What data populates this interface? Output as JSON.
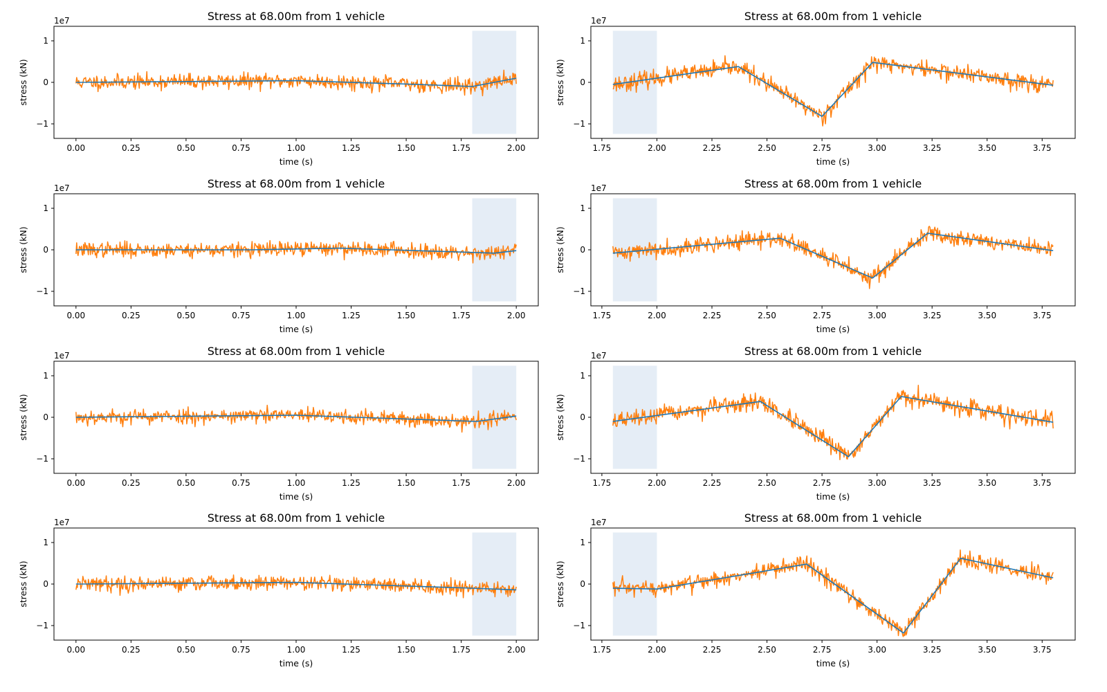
{
  "colors": {
    "noisy": "#ff7f0e",
    "clean": "#1f77b4",
    "window": "#dce7f3"
  },
  "chart_data": [
    {
      "type": "line",
      "title": "Stress at 68.00m from 1 vehicle",
      "xlabel": "time (s)",
      "ylabel": "stress (kN)",
      "y_exponent_label": "1e7",
      "xlim": [
        -0.1,
        2.1
      ],
      "ylim": [
        -1.35,
        1.35
      ],
      "xticks": [
        0.0,
        0.25,
        0.5,
        0.75,
        1.0,
        1.25,
        1.5,
        1.75,
        2.0
      ],
      "xtick_labels": [
        "0.00",
        "0.25",
        "0.50",
        "0.75",
        "1.00",
        "1.25",
        "1.50",
        "1.75",
        "2.00"
      ],
      "yticks": [
        -1,
        0,
        1
      ],
      "ytick_labels": [
        "−1",
        "0",
        "1"
      ],
      "window": [
        1.8,
        2.0
      ],
      "noise": 0.09,
      "seed": 11,
      "series": [
        {
          "values_x": [
            0.0,
            1.0,
            1.5,
            1.8,
            2.0
          ],
          "values_y": [
            0.0,
            0.04,
            -0.04,
            -0.1,
            0.1
          ]
        }
      ]
    },
    {
      "type": "line",
      "title": "Stress at 68.00m from 1 vehicle",
      "xlabel": "time (s)",
      "ylabel": "stress (kN)",
      "y_exponent_label": "1e7",
      "xlim": [
        1.7,
        3.9
      ],
      "ylim": [
        -1.35,
        1.35
      ],
      "xticks": [
        1.75,
        2.0,
        2.25,
        2.5,
        2.75,
        3.0,
        3.25,
        3.5,
        3.75
      ],
      "xtick_labels": [
        "1.75",
        "2.00",
        "2.25",
        "2.50",
        "2.75",
        "3.00",
        "3.25",
        "3.50",
        "3.75"
      ],
      "yticks": [
        -1,
        0,
        1
      ],
      "ytick_labels": [
        "−1",
        "0",
        "1"
      ],
      "window": [
        1.8,
        2.0
      ],
      "noise": 0.1,
      "seed": 23,
      "series": [
        {
          "values_x": [
            1.8,
            2.37,
            2.75,
            2.98,
            3.8
          ],
          "values_y": [
            -0.05,
            0.38,
            -0.82,
            0.48,
            -0.07
          ]
        }
      ]
    },
    {
      "type": "line",
      "title": "Stress at 68.00m from 1 vehicle",
      "xlabel": "time (s)",
      "ylabel": "stress (kN)",
      "y_exponent_label": "1e7",
      "xlim": [
        -0.1,
        2.1
      ],
      "ylim": [
        -1.35,
        1.35
      ],
      "xticks": [
        0.0,
        0.25,
        0.5,
        0.75,
        1.0,
        1.25,
        1.5,
        1.75,
        2.0
      ],
      "xtick_labels": [
        "0.00",
        "0.25",
        "0.50",
        "0.75",
        "1.00",
        "1.25",
        "1.50",
        "1.75",
        "2.00"
      ],
      "yticks": [
        -1,
        0,
        1
      ],
      "ytick_labels": [
        "−1",
        "0",
        "1"
      ],
      "window": [
        1.8,
        2.0
      ],
      "noise": 0.09,
      "seed": 37,
      "series": [
        {
          "values_x": [
            0.0,
            0.8,
            1.2,
            1.9,
            2.0
          ],
          "values_y": [
            0.0,
            0.0,
            0.04,
            -0.08,
            -0.02
          ]
        }
      ]
    },
    {
      "type": "line",
      "title": "Stress at 68.00m from 1 vehicle",
      "xlabel": "time (s)",
      "ylabel": "stress (kN)",
      "y_exponent_label": "1e7",
      "xlim": [
        1.7,
        3.9
      ],
      "ylim": [
        -1.35,
        1.35
      ],
      "xticks": [
        1.75,
        2.0,
        2.25,
        2.5,
        2.75,
        3.0,
        3.25,
        3.5,
        3.75
      ],
      "xtick_labels": [
        "1.75",
        "2.00",
        "2.25",
        "2.50",
        "2.75",
        "3.00",
        "3.25",
        "3.50",
        "3.75"
      ],
      "yticks": [
        -1,
        0,
        1
      ],
      "ytick_labels": [
        "−1",
        "0",
        "1"
      ],
      "window": [
        1.8,
        2.0
      ],
      "noise": 0.1,
      "seed": 41,
      "series": [
        {
          "values_x": [
            1.8,
            2.56,
            2.98,
            3.23,
            3.8
          ],
          "values_y": [
            -0.08,
            0.28,
            -0.68,
            0.4,
            -0.02
          ]
        }
      ]
    },
    {
      "type": "line",
      "title": "Stress at 68.00m from 1 vehicle",
      "xlabel": "time (s)",
      "ylabel": "stress (kN)",
      "y_exponent_label": "1e7",
      "xlim": [
        -0.1,
        2.1
      ],
      "ylim": [
        -1.35,
        1.35
      ],
      "xticks": [
        0.0,
        0.25,
        0.5,
        0.75,
        1.0,
        1.25,
        1.5,
        1.75,
        2.0
      ],
      "xtick_labels": [
        "0.00",
        "0.25",
        "0.50",
        "0.75",
        "1.00",
        "1.25",
        "1.50",
        "1.75",
        "2.00"
      ],
      "yticks": [
        -1,
        0,
        1
      ],
      "ytick_labels": [
        "−1",
        "0",
        "1"
      ],
      "window": [
        1.8,
        2.0
      ],
      "noise": 0.09,
      "seed": 53,
      "series": [
        {
          "values_x": [
            0.0,
            1.0,
            1.82,
            2.0
          ],
          "values_y": [
            0.0,
            0.05,
            -0.1,
            0.03
          ]
        }
      ]
    },
    {
      "type": "line",
      "title": "Stress at 68.00m from 1 vehicle",
      "xlabel": "time (s)",
      "ylabel": "stress (kN)",
      "y_exponent_label": "1e7",
      "xlim": [
        1.7,
        3.9
      ],
      "ylim": [
        -1.35,
        1.35
      ],
      "xticks": [
        1.75,
        2.0,
        2.25,
        2.5,
        2.75,
        3.0,
        3.25,
        3.5,
        3.75
      ],
      "xtick_labels": [
        "1.75",
        "2.00",
        "2.25",
        "2.50",
        "2.75",
        "3.00",
        "3.25",
        "3.50",
        "3.75"
      ],
      "yticks": [
        -1,
        0,
        1
      ],
      "ytick_labels": [
        "−1",
        "0",
        "1"
      ],
      "window": [
        1.8,
        2.0
      ],
      "noise": 0.1,
      "seed": 67,
      "series": [
        {
          "values_x": [
            1.8,
            2.47,
            2.87,
            3.11,
            3.8
          ],
          "values_y": [
            -0.1,
            0.38,
            -0.95,
            0.5,
            -0.12
          ]
        }
      ]
    },
    {
      "type": "line",
      "title": "Stress at 68.00m from 1 vehicle",
      "xlabel": "time (s)",
      "ylabel": "stress (kN)",
      "y_exponent_label": "1e7",
      "xlim": [
        -0.1,
        2.1
      ],
      "ylim": [
        -1.35,
        1.35
      ],
      "xticks": [
        0.0,
        0.25,
        0.5,
        0.75,
        1.0,
        1.25,
        1.5,
        1.75,
        2.0
      ],
      "xtick_labels": [
        "0.00",
        "0.25",
        "0.50",
        "0.75",
        "1.00",
        "1.25",
        "1.50",
        "1.75",
        "2.00"
      ],
      "yticks": [
        -1,
        0,
        1
      ],
      "ytick_labels": [
        "−1",
        "0",
        "1"
      ],
      "window": [
        1.8,
        2.0
      ],
      "noise": 0.09,
      "seed": 79,
      "series": [
        {
          "values_x": [
            0.0,
            1.0,
            1.8,
            2.0
          ],
          "values_y": [
            0.0,
            0.04,
            -0.1,
            -0.14
          ]
        }
      ]
    },
    {
      "type": "line",
      "title": "Stress at 68.00m from 1 vehicle",
      "xlabel": "time (s)",
      "ylabel": "stress (kN)",
      "y_exponent_label": "1e7",
      "xlim": [
        1.7,
        3.9
      ],
      "ylim": [
        -1.35,
        1.35
      ],
      "xticks": [
        1.75,
        2.0,
        2.25,
        2.5,
        2.75,
        3.0,
        3.25,
        3.5,
        3.75
      ],
      "xtick_labels": [
        "1.75",
        "2.00",
        "2.25",
        "2.50",
        "2.75",
        "3.00",
        "3.25",
        "3.50",
        "3.75"
      ],
      "yticks": [
        -1,
        0,
        1
      ],
      "ytick_labels": [
        "−1",
        "0",
        "1"
      ],
      "window": [
        1.8,
        2.0
      ],
      "noise": 0.1,
      "seed": 97,
      "series": [
        {
          "values_x": [
            1.8,
            2.0,
            2.68,
            3.12,
            3.38,
            3.8
          ],
          "values_y": [
            -0.1,
            -0.12,
            0.48,
            -1.18,
            0.62,
            0.15
          ]
        }
      ]
    }
  ]
}
